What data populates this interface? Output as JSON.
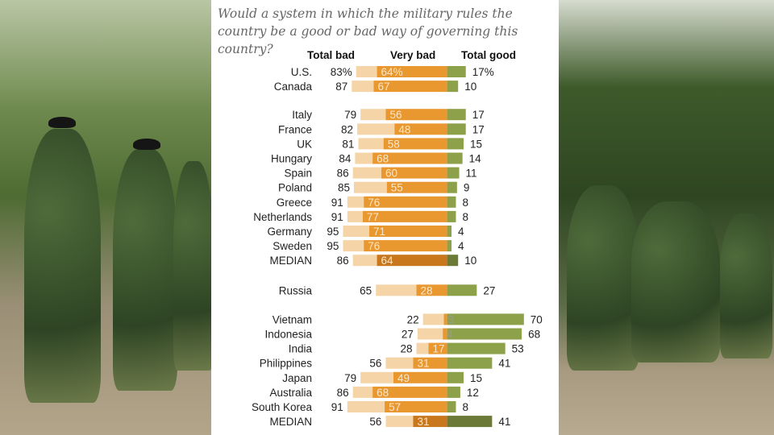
{
  "chart_data": {
    "type": "bar",
    "title": "Would a system in which the military rules the country be a good or bad way of governing this country?",
    "column_headers": {
      "total_bad": "Total bad",
      "very_bad": "Very bad",
      "total_good": "Total good"
    },
    "groups": [
      {
        "rows": [
          {
            "country": "U.S.",
            "total_bad": 83,
            "very_bad": 64,
            "total_good": 17,
            "percent_sign": true
          },
          {
            "country": "Canada",
            "total_bad": 87,
            "very_bad": 67,
            "total_good": 10
          }
        ]
      },
      {
        "rows": [
          {
            "country": "Italy",
            "total_bad": 79,
            "very_bad": 56,
            "total_good": 17
          },
          {
            "country": "France",
            "total_bad": 82,
            "very_bad": 48,
            "total_good": 17
          },
          {
            "country": "UK",
            "total_bad": 81,
            "very_bad": 58,
            "total_good": 15
          },
          {
            "country": "Hungary",
            "total_bad": 84,
            "very_bad": 68,
            "total_good": 14
          },
          {
            "country": "Spain",
            "total_bad": 86,
            "very_bad": 60,
            "total_good": 11
          },
          {
            "country": "Poland",
            "total_bad": 85,
            "very_bad": 55,
            "total_good": 9
          },
          {
            "country": "Greece",
            "total_bad": 91,
            "very_bad": 76,
            "total_good": 8
          },
          {
            "country": "Netherlands",
            "total_bad": 91,
            "very_bad": 77,
            "total_good": 8
          },
          {
            "country": "Germany",
            "total_bad": 95,
            "very_bad": 71,
            "total_good": 4
          },
          {
            "country": "Sweden",
            "total_bad": 95,
            "very_bad": 76,
            "total_good": 4
          },
          {
            "country": "MEDIAN",
            "total_bad": 86,
            "very_bad": 64,
            "total_good": 10,
            "median": true
          }
        ]
      },
      {
        "rows": [
          {
            "country": "Russia",
            "total_bad": 65,
            "very_bad": 28,
            "total_good": 27
          }
        ]
      },
      {
        "rows": [
          {
            "country": "Vietnam",
            "total_bad": 22,
            "very_bad": 3,
            "total_good": 70
          },
          {
            "country": "Indonesia",
            "total_bad": 27,
            "very_bad": 4,
            "total_good": 68
          },
          {
            "country": "India",
            "total_bad": 28,
            "very_bad": 17,
            "total_good": 53
          },
          {
            "country": "Philippines",
            "total_bad": 56,
            "very_bad": 31,
            "total_good": 41
          },
          {
            "country": "Japan",
            "total_bad": 79,
            "very_bad": 49,
            "total_good": 15
          },
          {
            "country": "Australia",
            "total_bad": 86,
            "very_bad": 68,
            "total_good": 12
          },
          {
            "country": "South Korea",
            "total_bad": 91,
            "very_bad": 57,
            "total_good": 8
          },
          {
            "country": "MEDIAN",
            "total_bad": 56,
            "very_bad": 31,
            "total_good": 41,
            "median": true
          }
        ]
      }
    ],
    "colors": {
      "total_bad": "#f5d5a8",
      "very_bad": "#e9972f",
      "total_good": "#8da04a",
      "median_very_bad": "#c9771c",
      "median_total_good": "#6b7a36"
    }
  }
}
